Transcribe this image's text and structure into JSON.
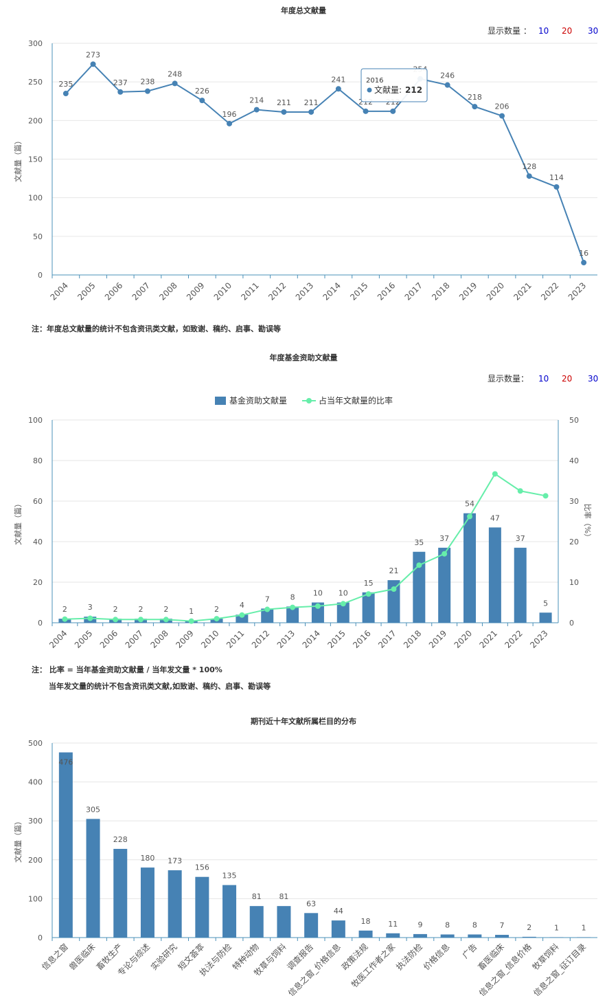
{
  "count_label": "显示数量 ：",
  "count_label_2": "显示数量：",
  "count_options": [
    {
      "label": "10",
      "color": "#0000cc"
    },
    {
      "label": "20",
      "color": "#cc0000"
    },
    {
      "label": "30",
      "color": "#0000cc"
    }
  ],
  "colors": {
    "line": "#4682b4",
    "bar": "#4682b4",
    "ratio": "#66eeaa",
    "axis": "#4a90b8"
  },
  "tooltip": {
    "year": "2016",
    "label": "文献量:",
    "value": "212"
  },
  "note1": "注：年度总文献量的统计不包含资讯类文献，如致谢、稿约、启事、勘误等",
  "note2_line1": "注： 比率 = 当年基金资助文献量 / 当年发文量 * 100%",
  "note2_line2": "当年发文量的统计不包含资讯类文献,如致谢、稿约、启事、勘误等",
  "chart_data": [
    {
      "type": "line",
      "title": "年度总文献量",
      "ylabel": "文献量（篇）",
      "ylim": [
        0,
        300
      ],
      "yticks": [
        0,
        50,
        100,
        150,
        200,
        250,
        300
      ],
      "x": [
        "2004",
        "2005",
        "2006",
        "2007",
        "2008",
        "2009",
        "2010",
        "2011",
        "2012",
        "2013",
        "2014",
        "2015",
        "2016",
        "2017",
        "2018",
        "2019",
        "2020",
        "2021",
        "2022",
        "2023"
      ],
      "series": [
        {
          "values": [
            235,
            273,
            237,
            238,
            248,
            226,
            196,
            214,
            211,
            211,
            241,
            212,
            212,
            254,
            246,
            218,
            206,
            128,
            114,
            16
          ]
        }
      ]
    },
    {
      "type": "bar",
      "title": "年度基金资助文献量",
      "ylabel": "文献量（篇）",
      "y2label": "比率（%）",
      "ylim": [
        0,
        100
      ],
      "y2lim": [
        0,
        50
      ],
      "yticks": [
        0,
        20,
        40,
        60,
        80,
        100
      ],
      "y2ticks": [
        0,
        10,
        20,
        30,
        40,
        50
      ],
      "x": [
        "2004",
        "2005",
        "2006",
        "2007",
        "2008",
        "2009",
        "2010",
        "2011",
        "2012",
        "2013",
        "2014",
        "2015",
        "2016",
        "2017",
        "2018",
        "2019",
        "2020",
        "2021",
        "2022",
        "2023"
      ],
      "series": [
        {
          "name": "基金资助文献量",
          "type": "bar",
          "values": [
            2,
            3,
            2,
            2,
            2,
            1,
            2,
            4,
            7,
            8,
            10,
            10,
            15,
            21,
            35,
            37,
            54,
            47,
            37,
            5
          ]
        },
        {
          "name": "占当年文献量的比率",
          "type": "line",
          "axis": "right",
          "values": [
            0.9,
            1.1,
            0.8,
            0.8,
            0.8,
            0.4,
            1.0,
            1.9,
            3.3,
            3.8,
            4.1,
            4.7,
            7.1,
            8.3,
            14.2,
            17.0,
            26.2,
            36.7,
            32.5,
            31.3
          ]
        }
      ]
    },
    {
      "type": "bar",
      "title": "期刊近十年文献所属栏目的分布",
      "ylabel": "文献量（篇）",
      "ylim": [
        0,
        500
      ],
      "yticks": [
        0,
        100,
        200,
        300,
        400,
        500
      ],
      "categories": [
        "信息之窗",
        "兽医临床",
        "畜牧生产",
        "专论与综述",
        "实验研究",
        "短文荟萃",
        "执法与防检",
        "特种动物",
        "牧草与饲料",
        "调查报告",
        "信息之窗_价格信息",
        "政策法规",
        "牧医工作者之家",
        "执法防检",
        "价格信息",
        "广告",
        "畜医临床",
        "信息之窗_信息价格",
        "牧草饲料",
        "信息之窗_征订目录"
      ],
      "values": [
        476,
        305,
        228,
        180,
        173,
        156,
        135,
        81,
        81,
        63,
        44,
        18,
        11,
        9,
        8,
        8,
        7,
        2,
        1,
        1
      ]
    }
  ]
}
